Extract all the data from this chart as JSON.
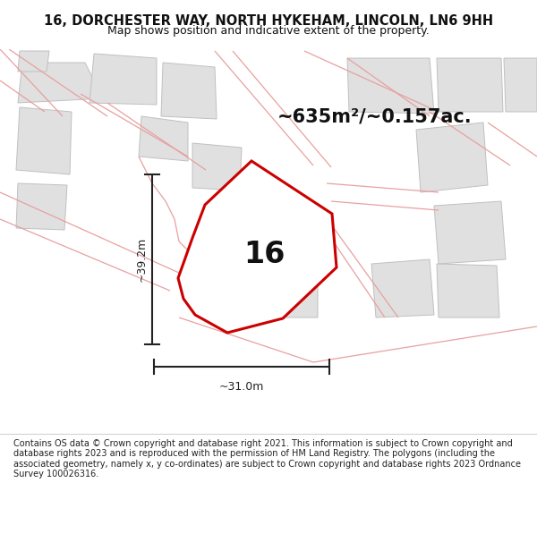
{
  "title": "16, DORCHESTER WAY, NORTH HYKEHAM, LINCOLN, LN6 9HH",
  "subtitle": "Map shows position and indicative extent of the property.",
  "area_text": "~635m²/~0.157ac.",
  "label_16": "16",
  "dim_height": "~39.2m",
  "dim_width": "~31.0m",
  "footer": "Contains OS data © Crown copyright and database right 2021. This information is subject to Crown copyright and database rights 2023 and is reproduced with the permission of HM Land Registry. The polygons (including the associated geometry, namely x, y co-ordinates) are subject to Crown copyright and database rights 2023 Ordnance Survey 100026316.",
  "bg_color": "#ffffff",
  "map_bg": "#ffffff",
  "plot_color": "#cc0000",
  "neighbor_edge": "#e8a0a0",
  "neighbor_fill": "#e8e8e8",
  "gray_edge": "#c0c0c0",
  "gray_fill": "#e0e0e0",
  "dim_color": "#222222",
  "title_color": "#111111",
  "figsize": [
    6.0,
    6.25
  ],
  "dpi": 100
}
